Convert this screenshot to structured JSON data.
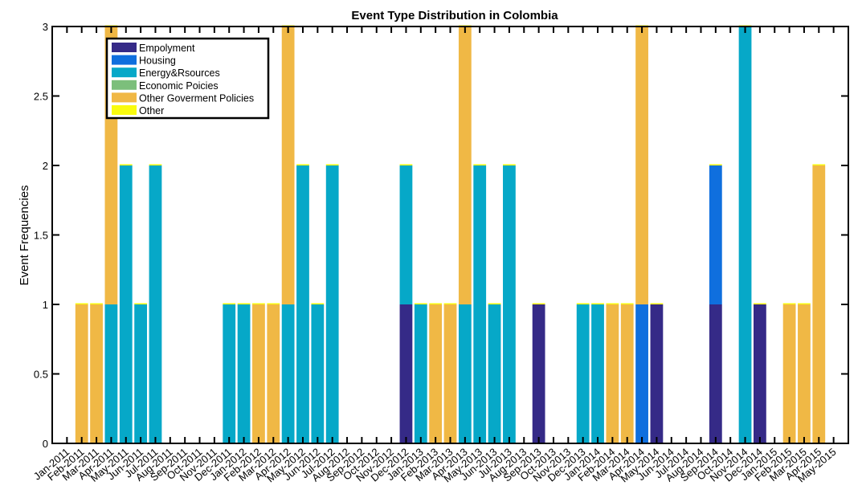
{
  "chart_data": {
    "type": "bar",
    "stacked": true,
    "title": "Event Type Distribution in Colombia",
    "xlabel": "",
    "ylabel": "Event Frequencies",
    "ylim": [
      0,
      3
    ],
    "yticks": [
      "0",
      "0.5",
      "1",
      "1.5",
      "2",
      "2.5",
      "3"
    ],
    "legend_position": "top-left",
    "grid": false,
    "categories": [
      "Jan-2011",
      "Feb-2011",
      "Mar-2011",
      "Apr-2011",
      "May-2011",
      "Jun-2011",
      "Jul-2011",
      "Aug-2011",
      "Sep-2011",
      "Oct-2011",
      "Nov-2011",
      "Dec-2011",
      "Jan-2012",
      "Feb-2012",
      "Mar-2012",
      "Apr-2012",
      "May-2012",
      "Jun-2012",
      "Jul-2012",
      "Aug-2012",
      "Sep-2012",
      "Oct-2012",
      "Nov-2012",
      "Dec-2012",
      "Jan-2013",
      "Feb-2013",
      "Mar-2013",
      "Apr-2013",
      "May-2013",
      "Jun-2013",
      "Jul-2013",
      "Aug-2013",
      "Sep-2013",
      "Oct-2013",
      "Nov-2013",
      "Dec-2013",
      "Jan-2014",
      "Feb-2014",
      "Mar-2014",
      "Apr-2014",
      "May-2014",
      "Jun-2014",
      "Jul-2014",
      "Aug-2014",
      "Sep-2014",
      "Oct-2014",
      "Nov-2014",
      "Dec-2014",
      "Jan-2015",
      "Feb-2015",
      "Mar-2015",
      "Apr-2015",
      "May-2015"
    ],
    "series": [
      {
        "name": "Empolyment",
        "color": "#352a87",
        "values": [
          0,
          0,
          0,
          0,
          0,
          0,
          0,
          0,
          0,
          0,
          0,
          0,
          0,
          0,
          0,
          0,
          0,
          0,
          0,
          0,
          0,
          0,
          0,
          1,
          0,
          0,
          0,
          0,
          0,
          0,
          0,
          0,
          1,
          0,
          0,
          0,
          0,
          0,
          0,
          0,
          1,
          0,
          0,
          0,
          1,
          0,
          0,
          1,
          0,
          0,
          0,
          0,
          0
        ]
      },
      {
        "name": "Housing",
        "color": "#0f6fde",
        "values": [
          0,
          0,
          0,
          0,
          0,
          0,
          0,
          0,
          0,
          0,
          0,
          0,
          0,
          0,
          0,
          0,
          0,
          0,
          0,
          0,
          0,
          0,
          0,
          0,
          0,
          0,
          0,
          0,
          0,
          0,
          0,
          0,
          0,
          0,
          0,
          0,
          0,
          0,
          0,
          1,
          0,
          0,
          0,
          0,
          1,
          0,
          0,
          0,
          0,
          0,
          0,
          0,
          0
        ]
      },
      {
        "name": "Energy&Rsources",
        "color": "#06a8c8",
        "values": [
          0,
          0,
          0,
          1,
          2,
          1,
          2,
          0,
          0,
          0,
          0,
          1,
          1,
          0,
          0,
          1,
          2,
          1,
          2,
          0,
          0,
          0,
          0,
          1,
          1,
          0,
          0,
          1,
          2,
          1,
          2,
          0,
          0,
          0,
          0,
          1,
          1,
          0,
          0,
          0,
          0,
          0,
          0,
          0,
          0,
          0,
          3,
          0,
          0,
          0,
          0,
          0,
          0
        ]
      },
      {
        "name": "Economic Poicies",
        "color": "#7cbf7b",
        "values": [
          0,
          0,
          0,
          0,
          0,
          0,
          0,
          0,
          0,
          0,
          0,
          0,
          0,
          0,
          0,
          0,
          0,
          0,
          0,
          0,
          0,
          0,
          0,
          0,
          0,
          0,
          0,
          0,
          0,
          0,
          0,
          0,
          0,
          0,
          0,
          0,
          0,
          0,
          0,
          0,
          0,
          0,
          0,
          0,
          0,
          0,
          0,
          0,
          0,
          0,
          0,
          0,
          0
        ]
      },
      {
        "name": "Other Goverment Policies",
        "color": "#f0b845",
        "values": [
          0,
          1,
          1,
          2,
          0,
          0,
          0,
          0,
          0,
          0,
          0,
          0,
          0,
          1,
          1,
          2,
          0,
          0,
          0,
          0,
          0,
          0,
          0,
          0,
          0,
          1,
          1,
          2,
          0,
          0,
          0,
          0,
          0,
          0,
          0,
          0,
          0,
          1,
          1,
          2,
          0,
          0,
          0,
          0,
          0,
          0,
          0,
          0,
          0,
          1,
          1,
          2,
          0
        ]
      },
      {
        "name": "Other",
        "color": "#f9fb0e",
        "values": [
          0,
          0,
          0,
          0,
          0,
          0,
          0,
          0,
          0,
          0,
          0,
          0,
          0,
          0,
          0,
          0,
          0,
          0,
          0,
          0,
          0,
          0,
          0,
          0,
          0,
          0,
          0,
          0,
          0,
          0,
          0,
          0,
          0,
          0,
          0,
          0,
          0,
          0,
          0,
          0,
          0,
          0,
          0,
          0,
          0,
          0,
          0,
          0,
          0,
          0,
          0,
          0,
          0
        ]
      }
    ]
  }
}
